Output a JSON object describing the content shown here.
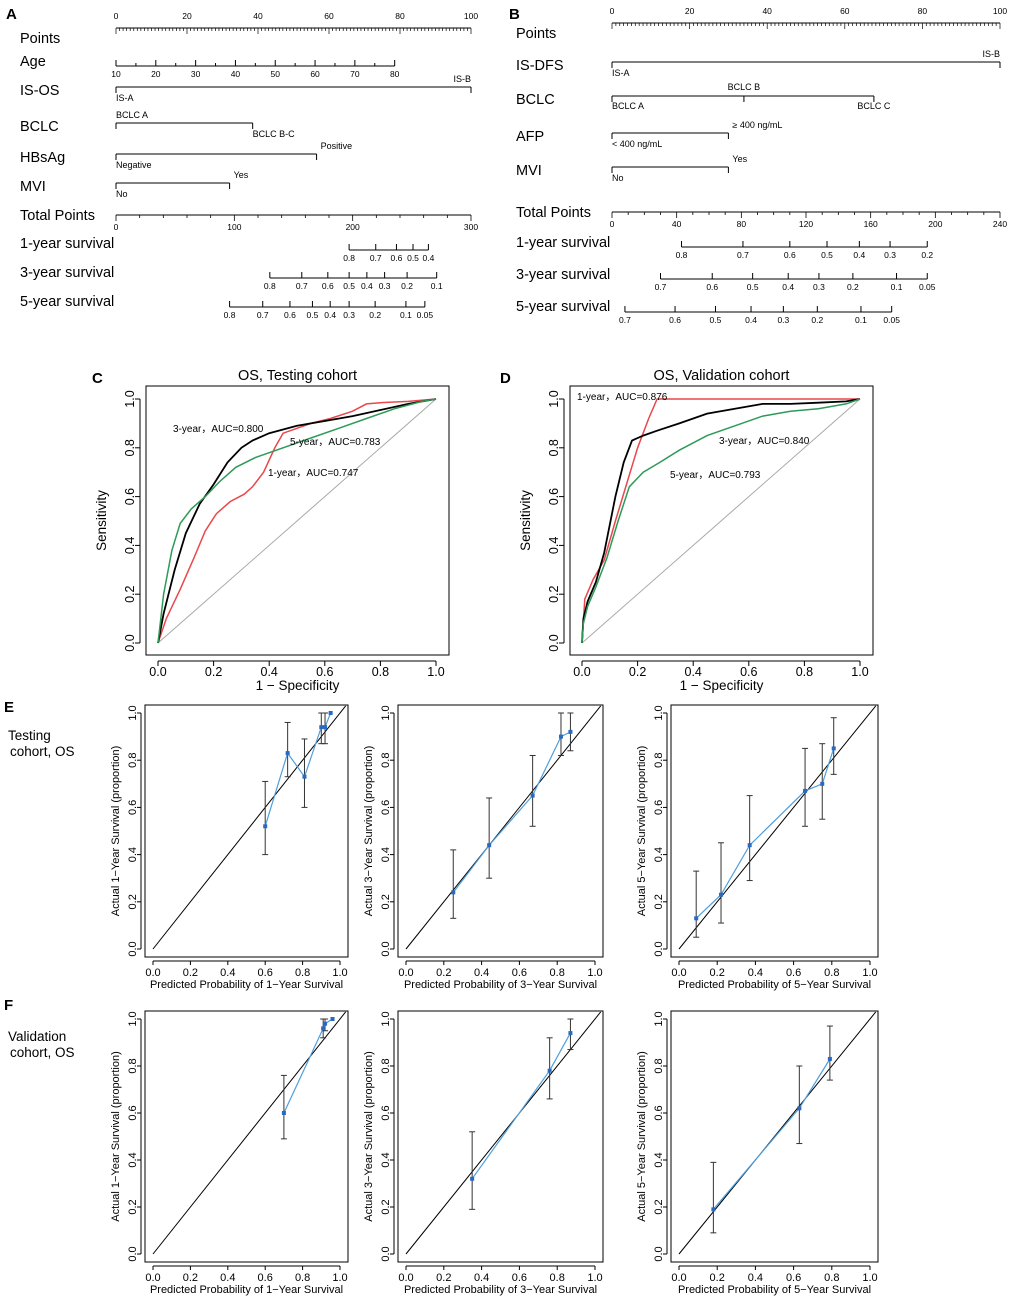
{
  "colors": {
    "axis": "#000000",
    "red": "#e8474c",
    "black": "#000000",
    "green": "#2e9a58",
    "diag": "#a8a8a8",
    "blue": "#4f9fdc",
    "point": "#2869c2"
  },
  "panel_labels": {
    "A": "A",
    "B": "B",
    "C": "C",
    "D": "D",
    "E": "E",
    "F": "F"
  },
  "side_labels": {
    "E": [
      "Testing",
      "cohort, OS"
    ],
    "F": [
      "Validation",
      "cohort, OS"
    ]
  },
  "chart_data": [
    {
      "id": "A",
      "type": "nomogram",
      "rows": [
        {
          "label": "Points",
          "kind": "scale",
          "range": [
            0,
            100
          ],
          "ticks": [
            0,
            20,
            40,
            60,
            80,
            100
          ],
          "minor": 1
        },
        {
          "label": "Age",
          "kind": "ticks",
          "range": [
            10,
            80
          ],
          "points_range": [
            0,
            78.5
          ],
          "ticks": [
            10,
            20,
            30,
            40,
            50,
            60,
            70,
            80
          ]
        },
        {
          "label": "IS-OS",
          "kind": "seg",
          "points": [
            0,
            100
          ],
          "left": "IS-A",
          "right": "IS-B",
          "right_pos": "above"
        },
        {
          "label": "BCLC",
          "kind": "seg",
          "points": [
            0,
            38.5
          ],
          "left": "BCLC A",
          "right": "BCLC B-C",
          "left_pos": "above",
          "right_pos": "below"
        },
        {
          "label": "HBsAg",
          "kind": "seg",
          "points": [
            0,
            56.5
          ],
          "left": "Negative",
          "right": "Positive",
          "left_pos": "below",
          "right_pos": "above"
        },
        {
          "label": "MVI",
          "kind": "seg",
          "points": [
            0,
            32
          ],
          "left": "No",
          "right": "Yes",
          "left_pos": "below",
          "right_pos": "above"
        },
        {
          "label": "Total Points",
          "kind": "scale",
          "range": [
            0,
            300
          ],
          "ticks": [
            0,
            100,
            200,
            300
          ],
          "minor": 20
        },
        {
          "label": "1-year survival",
          "kind": "survival",
          "ticks": [
            [
              0.8,
              197
            ],
            [
              0.7,
              219.5
            ],
            [
              0.6,
              237
            ],
            [
              0.5,
              251
            ],
            [
              0.4,
              264
            ]
          ]
        },
        {
          "label": "3-year survival",
          "kind": "survival",
          "ticks": [
            [
              0.8,
              130
            ],
            [
              0.7,
              157
            ],
            [
              0.6,
              179
            ],
            [
              0.5,
              197
            ],
            [
              0.4,
              212
            ],
            [
              0.3,
              227
            ],
            [
              0.2,
              246
            ],
            [
              0.1,
              271
            ]
          ]
        },
        {
          "label": "5-year survival",
          "kind": "survival",
          "ticks": [
            [
              0.8,
              96
            ],
            [
              0.7,
              124
            ],
            [
              0.6,
              147
            ],
            [
              0.5,
              166
            ],
            [
              0.4,
              181
            ],
            [
              0.3,
              197
            ],
            [
              0.2,
              219
            ],
            [
              0.1,
              245
            ],
            [
              0.05,
              261
            ]
          ]
        }
      ]
    },
    {
      "id": "B",
      "type": "nomogram",
      "rows": [
        {
          "label": "Points",
          "kind": "scale",
          "range": [
            0,
            100
          ],
          "ticks": [
            0,
            20,
            40,
            60,
            80,
            100
          ],
          "minor": 1
        },
        {
          "label": "IS-DFS",
          "kind": "seg",
          "points": [
            0,
            100
          ],
          "left": "IS-A",
          "right": "IS-B",
          "left_pos": "below",
          "right_pos": "above"
        },
        {
          "label": "BCLC",
          "kind": "seg3",
          "points": [
            0,
            34,
            67.5
          ],
          "left": "BCLC A",
          "mid": "BCLC B",
          "right": "BCLC C"
        },
        {
          "label": "AFP",
          "kind": "seg",
          "points": [
            0,
            30
          ],
          "left": "< 400 ng/mL",
          "right": "≥ 400 ng/mL",
          "left_pos": "below",
          "right_pos": "above"
        },
        {
          "label": "MVI",
          "kind": "seg",
          "points": [
            0,
            30
          ],
          "left": "No",
          "right": "Yes",
          "left_pos": "below",
          "right_pos": "above"
        },
        {
          "label": "Total Points",
          "kind": "scale",
          "range": [
            0,
            240
          ],
          "ticks": [
            0,
            40,
            80,
            120,
            160,
            200,
            240
          ],
          "minor": 10
        },
        {
          "label": "1-year survival",
          "kind": "survival",
          "ticks": [
            [
              0.8,
              43
            ],
            [
              0.7,
              81
            ],
            [
              0.6,
              110
            ],
            [
              0.5,
              133
            ],
            [
              0.4,
              153
            ],
            [
              0.3,
              172
            ],
            [
              0.2,
              195
            ]
          ]
        },
        {
          "label": "3-year survival",
          "kind": "survival",
          "ticks": [
            [
              0.7,
              30
            ],
            [
              0.6,
              62
            ],
            [
              0.5,
              87
            ],
            [
              0.4,
              109
            ],
            [
              0.3,
              128
            ],
            [
              0.2,
              149
            ],
            [
              0.1,
              176
            ],
            [
              0.05,
              195
            ]
          ]
        },
        {
          "label": "5-year survival",
          "kind": "survival",
          "ticks": [
            [
              0.7,
              8
            ],
            [
              0.6,
              39
            ],
            [
              0.5,
              64
            ],
            [
              0.4,
              86
            ],
            [
              0.3,
              106
            ],
            [
              0.2,
              127
            ],
            [
              0.1,
              154
            ],
            [
              0.05,
              173
            ]
          ]
        }
      ]
    },
    {
      "id": "C",
      "type": "line",
      "title": "OS, Testing cohort",
      "xlabel": "1 − Specificity",
      "ylabel": "Sensitivity",
      "xlim": [
        0,
        1
      ],
      "ylim": [
        0,
        1
      ],
      "ticks": [
        "0.0",
        "0.2",
        "0.4",
        "0.6",
        "0.8",
        "1.0"
      ],
      "series": [
        {
          "name": "1-year",
          "color": "red",
          "label": "1-year，AUC=0.747",
          "x": [
            0,
            0.03,
            0.08,
            0.13,
            0.17,
            0.21,
            0.26,
            0.31,
            0.34,
            0.38,
            0.42,
            0.45,
            0.5,
            0.55,
            0.62,
            0.7,
            0.75,
            0.8,
            0.9,
            1.0
          ],
          "y": [
            0,
            0.1,
            0.22,
            0.35,
            0.46,
            0.53,
            0.58,
            0.61,
            0.64,
            0.7,
            0.8,
            0.86,
            0.88,
            0.9,
            0.92,
            0.95,
            0.98,
            0.985,
            0.99,
            1.0
          ]
        },
        {
          "name": "3-year",
          "color": "black",
          "label": "3-year，AUC=0.800",
          "x": [
            0,
            0.02,
            0.06,
            0.1,
            0.15,
            0.2,
            0.25,
            0.3,
            0.34,
            0.4,
            0.5,
            0.6,
            0.7,
            0.8,
            0.9,
            1.0
          ],
          "y": [
            0,
            0.12,
            0.3,
            0.45,
            0.57,
            0.65,
            0.74,
            0.8,
            0.83,
            0.86,
            0.89,
            0.91,
            0.93,
            0.955,
            0.98,
            1.0
          ]
        },
        {
          "name": "5-year",
          "color": "green",
          "label": "5-year，AUC=0.783",
          "x": [
            0,
            0.02,
            0.05,
            0.08,
            0.12,
            0.17,
            0.22,
            0.28,
            0.35,
            0.45,
            0.55,
            0.65,
            0.75,
            0.85,
            0.95,
            1.0
          ],
          "y": [
            0,
            0.2,
            0.38,
            0.49,
            0.55,
            0.6,
            0.66,
            0.72,
            0.76,
            0.8,
            0.84,
            0.88,
            0.92,
            0.96,
            0.99,
            1.0
          ]
        }
      ],
      "diagonal": true
    },
    {
      "id": "D",
      "type": "line",
      "title": "OS, Validation cohort",
      "xlabel": "1 − Specificity",
      "ylabel": "Sensitivity",
      "xlim": [
        0,
        1
      ],
      "ylim": [
        0,
        1
      ],
      "ticks": [
        "0.0",
        "0.2",
        "0.4",
        "0.6",
        "0.8",
        "1.0"
      ],
      "series": [
        {
          "name": "1-year",
          "color": "red",
          "label": "1-year，AUC=0.876",
          "x": [
            0,
            0.01,
            0.04,
            0.08,
            0.12,
            0.16,
            0.2,
            0.24,
            0.27,
            0.35,
            0.5,
            0.75,
            1.0
          ],
          "y": [
            0,
            0.18,
            0.26,
            0.34,
            0.5,
            0.65,
            0.8,
            0.92,
            1.0,
            1.0,
            1.0,
            1.0,
            1.0
          ],
          "step": false
        },
        {
          "name": "3-year",
          "color": "black",
          "label": "3-year，AUC=0.840",
          "x": [
            0,
            0.005,
            0.02,
            0.05,
            0.08,
            0.12,
            0.15,
            0.18,
            0.22,
            0.27,
            0.35,
            0.45,
            0.55,
            0.65,
            0.75,
            0.85,
            0.95,
            1.0
          ],
          "y": [
            0,
            0.1,
            0.17,
            0.25,
            0.37,
            0.6,
            0.74,
            0.83,
            0.85,
            0.87,
            0.9,
            0.94,
            0.96,
            0.98,
            0.98,
            0.985,
            0.99,
            1.0
          ]
        },
        {
          "name": "5-year",
          "color": "green",
          "label": "5-year，AUC=0.793",
          "x": [
            0,
            0.005,
            0.02,
            0.05,
            0.09,
            0.13,
            0.17,
            0.22,
            0.28,
            0.35,
            0.45,
            0.55,
            0.65,
            0.75,
            0.85,
            0.95,
            1.0
          ],
          "y": [
            0,
            0.08,
            0.15,
            0.23,
            0.35,
            0.5,
            0.64,
            0.7,
            0.74,
            0.79,
            0.85,
            0.89,
            0.93,
            0.95,
            0.96,
            0.98,
            1.0
          ]
        }
      ],
      "diagonal": true
    },
    {
      "id": "E1",
      "type": "scatter",
      "title": "",
      "xlabel": "Predicted Probability of 1−Year Survival",
      "ylabel": "Actual 1−Year Survival (proportion)",
      "xlim": [
        0,
        1
      ],
      "ylim": [
        0,
        1
      ],
      "ticks": [
        "0.0",
        "0.2",
        "0.4",
        "0.6",
        "0.8",
        "1.0"
      ],
      "points": [
        {
          "x": 0.6,
          "y": 0.52,
          "lo": 0.4,
          "hi": 0.71
        },
        {
          "x": 0.72,
          "y": 0.83,
          "lo": 0.73,
          "hi": 0.96
        },
        {
          "x": 0.81,
          "y": 0.73,
          "lo": 0.6,
          "hi": 0.89
        },
        {
          "x": 0.9,
          "y": 0.94,
          "lo": 0.87,
          "hi": 1.0
        },
        {
          "x": 0.92,
          "y": 0.94,
          "lo": 0.87,
          "hi": 1.0
        },
        {
          "x": 0.95,
          "y": 1.0,
          "lo": 1.0,
          "hi": 1.0
        }
      ]
    },
    {
      "id": "E2",
      "type": "scatter",
      "title": "",
      "xlabel": "Predicted Probability of 3−Year Survival",
      "ylabel": "Actual 3−Year Survival (proportion)",
      "xlim": [
        0,
        1
      ],
      "ylim": [
        0,
        1
      ],
      "ticks": [
        "0.0",
        "0.2",
        "0.4",
        "0.6",
        "0.8",
        "1.0"
      ],
      "points": [
        {
          "x": 0.25,
          "y": 0.24,
          "lo": 0.13,
          "hi": 0.42
        },
        {
          "x": 0.44,
          "y": 0.44,
          "lo": 0.3,
          "hi": 0.64
        },
        {
          "x": 0.67,
          "y": 0.65,
          "lo": 0.52,
          "hi": 0.82
        },
        {
          "x": 0.82,
          "y": 0.9,
          "lo": 0.82,
          "hi": 1.0
        },
        {
          "x": 0.87,
          "y": 0.92,
          "lo": 0.84,
          "hi": 1.0
        }
      ]
    },
    {
      "id": "E3",
      "type": "scatter",
      "title": "",
      "xlabel": "Predicted Probability of 5−Year Survival",
      "ylabel": "Actual 5−Year Survival (proportion)",
      "xlim": [
        0,
        1
      ],
      "ylim": [
        0,
        1
      ],
      "ticks": [
        "0.0",
        "0.2",
        "0.4",
        "0.6",
        "0.8",
        "1.0"
      ],
      "points": [
        {
          "x": 0.09,
          "y": 0.13,
          "lo": 0.05,
          "hi": 0.33
        },
        {
          "x": 0.22,
          "y": 0.23,
          "lo": 0.11,
          "hi": 0.45
        },
        {
          "x": 0.37,
          "y": 0.44,
          "lo": 0.29,
          "hi": 0.65
        },
        {
          "x": 0.66,
          "y": 0.67,
          "lo": 0.52,
          "hi": 0.85
        },
        {
          "x": 0.75,
          "y": 0.7,
          "lo": 0.55,
          "hi": 0.87
        },
        {
          "x": 0.81,
          "y": 0.85,
          "lo": 0.74,
          "hi": 0.98
        }
      ]
    },
    {
      "id": "F1",
      "type": "scatter",
      "title": "",
      "xlabel": "Predicted Probability of 1−Year Survival",
      "ylabel": "Actual 1−Year Survival (proportion)",
      "xlim": [
        0,
        1
      ],
      "ylim": [
        0,
        1
      ],
      "ticks": [
        "0.0",
        "0.2",
        "0.4",
        "0.6",
        "0.8",
        "1.0"
      ],
      "points": [
        {
          "x": 0.7,
          "y": 0.6,
          "lo": 0.49,
          "hi": 0.76
        },
        {
          "x": 0.91,
          "y": 0.96,
          "lo": 0.92,
          "hi": 1.0
        },
        {
          "x": 0.92,
          "y": 0.98,
          "lo": 0.95,
          "hi": 1.0
        },
        {
          "x": 0.96,
          "y": 1.0,
          "lo": 1.0,
          "hi": 1.0
        }
      ]
    },
    {
      "id": "F2",
      "type": "scatter",
      "title": "",
      "xlabel": "Predicted Probability of 3−Year Survival",
      "ylabel": "Actual 3−Year Survival (proportion)",
      "xlim": [
        0,
        1
      ],
      "ylim": [
        0,
        1
      ],
      "ticks": [
        "0.0",
        "0.2",
        "0.4",
        "0.6",
        "0.8",
        "1.0"
      ],
      "points": [
        {
          "x": 0.35,
          "y": 0.32,
          "lo": 0.19,
          "hi": 0.52
        },
        {
          "x": 0.76,
          "y": 0.78,
          "lo": 0.66,
          "hi": 0.92
        },
        {
          "x": 0.87,
          "y": 0.94,
          "lo": 0.87,
          "hi": 1.0
        }
      ]
    },
    {
      "id": "F3",
      "type": "scatter",
      "title": "",
      "xlabel": "Predicted Probability of 5−Year Survival",
      "ylabel": "Actual 5−Year Survival (proportion)",
      "xlim": [
        0,
        1
      ],
      "ylim": [
        0,
        1
      ],
      "ticks": [
        "0.0",
        "0.2",
        "0.4",
        "0.6",
        "0.8",
        "1.0"
      ],
      "points": [
        {
          "x": 0.18,
          "y": 0.19,
          "lo": 0.09,
          "hi": 0.39
        },
        {
          "x": 0.63,
          "y": 0.62,
          "lo": 0.47,
          "hi": 0.8
        },
        {
          "x": 0.79,
          "y": 0.83,
          "lo": 0.74,
          "hi": 0.97
        }
      ]
    }
  ]
}
